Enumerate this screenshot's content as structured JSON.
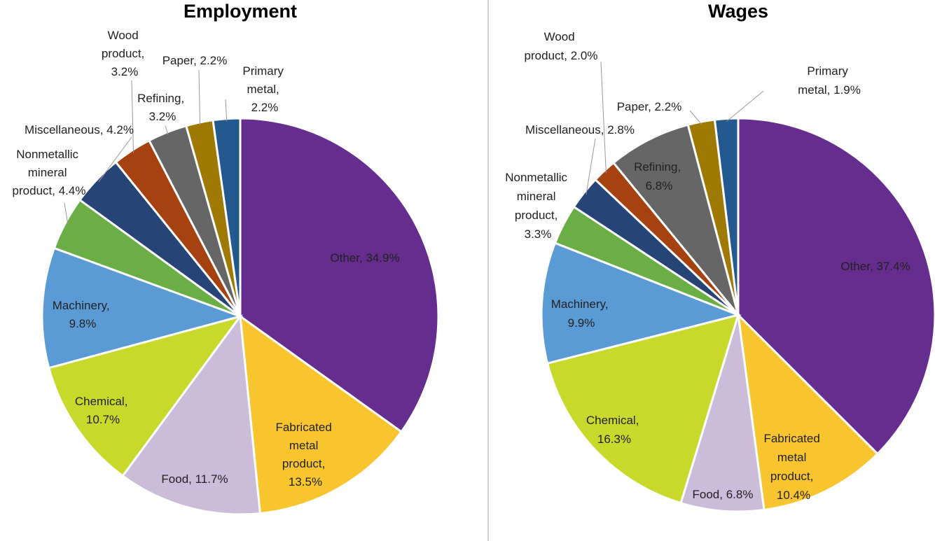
{
  "chart_data": [
    {
      "type": "pie",
      "title": "Employment",
      "values": [
        34.9,
        13.5,
        11.7,
        10.7,
        9.8,
        4.4,
        4.2,
        3.2,
        3.2,
        2.2,
        2.2
      ],
      "value_labels": [
        "Other, 34.9%",
        "Fabricated metal product, 13.5%",
        "Food, 11.7%",
        "Chemical, 10.7%",
        "Machinery, 9.8%",
        "Nonmetallic mineral product, 4.4%",
        "Miscellaneous, 4.2%",
        "Wood product, 3.2%",
        "Refining, 3.2%",
        "Paper, 2.2%",
        "Primary metal, 2.2%"
      ],
      "colors": [
        "#652d8e",
        "#f9c52f",
        "#cbbcd9",
        "#c8d92b",
        "#5b9bd5",
        "#6aae45",
        "#274476",
        "#a5420f",
        "#666666",
        "#9e7a04",
        "#24598f"
      ]
    },
    {
      "type": "pie",
      "title": "Wages",
      "values": [
        37.4,
        10.4,
        6.8,
        16.3,
        9.9,
        3.3,
        2.8,
        2.0,
        6.8,
        2.2,
        1.9
      ],
      "value_labels": [
        "Other, 37.4%",
        "Fabricated metal product, 10.4%",
        "Food, 6.8%",
        "Chemical, 16.3%",
        "Machinery, 9.9%",
        "Nonmetallic mineral product, 3.3%",
        "Miscellaneous, 2.8%",
        "Wood product, 2.0%",
        "Refining, 6.8%",
        "Paper, 2.2%",
        "Primary metal, 1.9%"
      ],
      "colors": [
        "#652d8e",
        "#f9c52f",
        "#cbbcd9",
        "#c8d92b",
        "#5b9bd5",
        "#6aae45",
        "#274476",
        "#a5420f",
        "#666666",
        "#9e7a04",
        "#24598f"
      ]
    }
  ]
}
